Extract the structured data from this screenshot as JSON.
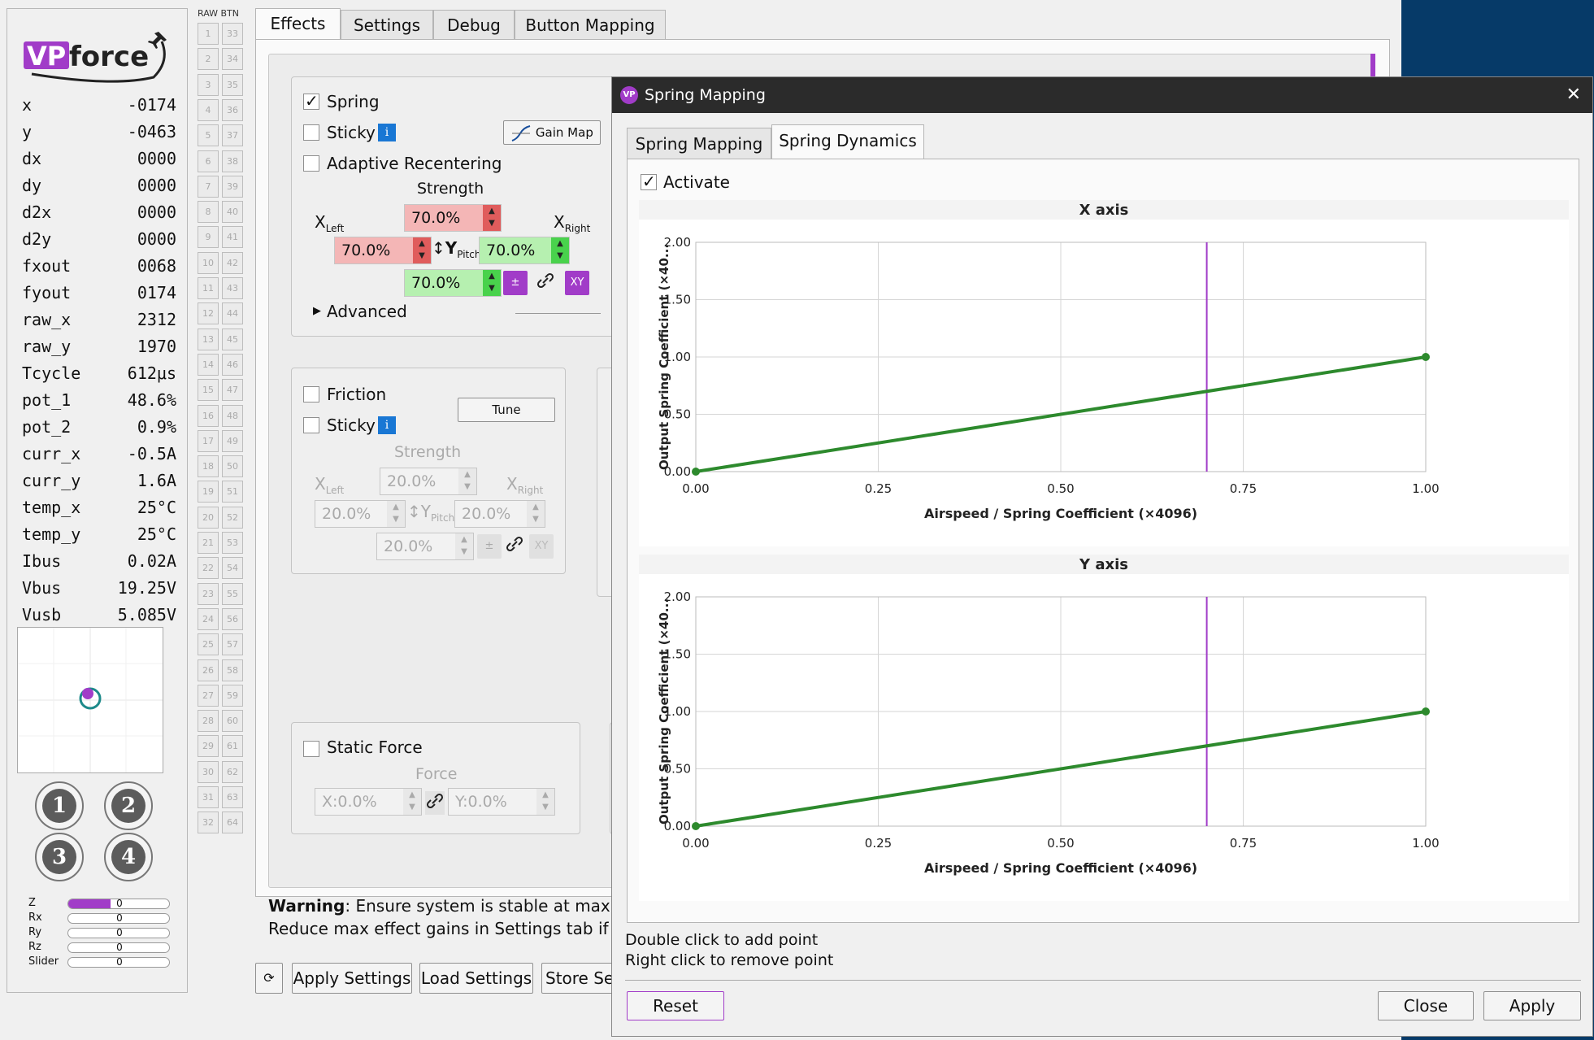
{
  "brand": {
    "logo_text_vp": "VP",
    "logo_text_force": "force"
  },
  "telemetry": [
    {
      "name": "x",
      "value": "-0174"
    },
    {
      "name": "y",
      "value": "-0463"
    },
    {
      "name": "dx",
      "value": "0000"
    },
    {
      "name": "dy",
      "value": "0000"
    },
    {
      "name": "d2x",
      "value": "0000"
    },
    {
      "name": "d2y",
      "value": "0000"
    },
    {
      "name": "fxout",
      "value": "0068"
    },
    {
      "name": "fyout",
      "value": "0174"
    },
    {
      "name": "raw_x",
      "value": "2312"
    },
    {
      "name": "raw_y",
      "value": "1970"
    },
    {
      "name": "Tcycle",
      "value": "612μs"
    },
    {
      "name": "pot_1",
      "value": "48.6%"
    },
    {
      "name": "pot_2",
      "value": "0.9%"
    },
    {
      "name": "curr_x",
      "value": "-0.5A"
    },
    {
      "name": "curr_y",
      "value": "1.6A"
    },
    {
      "name": "temp_x",
      "value": "25°C"
    },
    {
      "name": "temp_y",
      "value": "25°C"
    },
    {
      "name": "Ibus",
      "value": "0.02A"
    },
    {
      "name": "Vbus",
      "value": "19.25V"
    },
    {
      "name": "Vusb",
      "value": "5.085V"
    }
  ],
  "hat_buttons": [
    "1",
    "2",
    "3",
    "4"
  ],
  "axes": [
    {
      "name": "Z",
      "value": "0",
      "fill": 0.42
    },
    {
      "name": "Rx",
      "value": "0",
      "fill": 0
    },
    {
      "name": "Ry",
      "value": "0",
      "fill": 0
    },
    {
      "name": "Rz",
      "value": "0",
      "fill": 0
    },
    {
      "name": "Slider",
      "value": "0",
      "fill": 0
    }
  ],
  "raw_btn_header": "RAW BTN",
  "raw_buttons_left": [
    "1",
    "2",
    "3",
    "4",
    "5",
    "6",
    "7",
    "8",
    "9",
    "10",
    "11",
    "12",
    "13",
    "14",
    "15",
    "16",
    "17",
    "18",
    "19",
    "20",
    "21",
    "22",
    "23",
    "24",
    "25",
    "26",
    "27",
    "28",
    "29",
    "30",
    "31",
    "32"
  ],
  "raw_buttons_right": [
    "33",
    "34",
    "35",
    "36",
    "37",
    "38",
    "39",
    "40",
    "41",
    "42",
    "43",
    "44",
    "45",
    "46",
    "47",
    "48",
    "49",
    "50",
    "51",
    "52",
    "53",
    "54",
    "55",
    "56",
    "57",
    "58",
    "59",
    "60",
    "61",
    "62",
    "63",
    "64"
  ],
  "main_tabs": [
    "Effects",
    "Settings",
    "Debug",
    "Button Mapping"
  ],
  "spring": {
    "label": "Spring",
    "sticky": "Sticky",
    "info": "i",
    "gain_map": "Gain Map",
    "adaptive": "Adaptive Recentering",
    "strength": "Strength",
    "x_left": "X",
    "x_left_sub": "Left",
    "x_right": "X",
    "x_right_sub": "Right",
    "y_pitch": "Y",
    "y_pitch_sub": "Pitch",
    "top_val": "70.0%",
    "left_val": "70.0%",
    "right_val": "70.0%",
    "bottom_val": "70.0%",
    "pm": "±",
    "xy": "XY",
    "advanced": "Advanced"
  },
  "friction": {
    "label": "Friction",
    "sticky": "Sticky",
    "info": "i",
    "tune": "Tune",
    "strength": "Strength",
    "x_left": "X",
    "x_left_sub": "Left",
    "x_right": "X",
    "x_right_sub": "Right",
    "y_pitch": "Y",
    "y_pitch_sub": "Pitch",
    "top_val": "20.0%",
    "left_val": "20.0%",
    "right_val": "20.0%",
    "bottom_val": "20.0%",
    "pm": "±",
    "xy": "XY"
  },
  "static_force": {
    "label": "Static Force",
    "force": "Force",
    "x_val": "X:0.0%",
    "y_val": "Y:0.0%"
  },
  "warning": {
    "bold": "Warning",
    "line1": ": Ensure system is stable at maximum",
    "line2": "Reduce max effect gains in Settings tab if nee"
  },
  "bottom_buttons": {
    "refresh": "⟳",
    "apply": "Apply Settings",
    "load": "Load Settings",
    "store": "Store Set"
  },
  "dialog": {
    "title": "Spring Mapping",
    "close": "✕",
    "tabs": [
      "Spring Mapping",
      "Spring Dynamics"
    ],
    "activate": "Activate",
    "hint1": "Double click to add point",
    "hint2": "Right click to remove point",
    "reset": "Reset",
    "close_btn": "Close",
    "apply": "Apply"
  },
  "colors": {
    "accent": "#a13cc8",
    "line": "#2d8a2d",
    "marker": "#a13cc8"
  },
  "chart_data": [
    {
      "type": "line",
      "title": "X axis",
      "xlabel": "Airspeed / Spring Coefficient (×4096)",
      "ylabel": "Output Spring Coefficient (×40...",
      "xlim": [
        0,
        1
      ],
      "ylim": [
        0,
        2
      ],
      "xticks": [
        "0.00",
        "0.25",
        "0.50",
        "0.75",
        "1.00"
      ],
      "yticks": [
        "0.00",
        "0.50",
        "1.00",
        "1.50",
        "2.00"
      ],
      "series": [
        {
          "x": [
            0,
            1
          ],
          "y": [
            0,
            1
          ]
        }
      ],
      "marker_x": 0.7,
      "grid": true
    },
    {
      "type": "line",
      "title": "Y axis",
      "xlabel": "Airspeed / Spring Coefficient (×4096)",
      "ylabel": "Output Spring Coefficient (×40...",
      "xlim": [
        0,
        1
      ],
      "ylim": [
        0,
        2
      ],
      "xticks": [
        "0.00",
        "0.25",
        "0.50",
        "0.75",
        "1.00"
      ],
      "yticks": [
        "0.00",
        "0.50",
        "1.00",
        "1.50",
        "2.00"
      ],
      "series": [
        {
          "x": [
            0,
            1
          ],
          "y": [
            0,
            1
          ]
        }
      ],
      "marker_x": 0.7,
      "grid": true
    }
  ]
}
